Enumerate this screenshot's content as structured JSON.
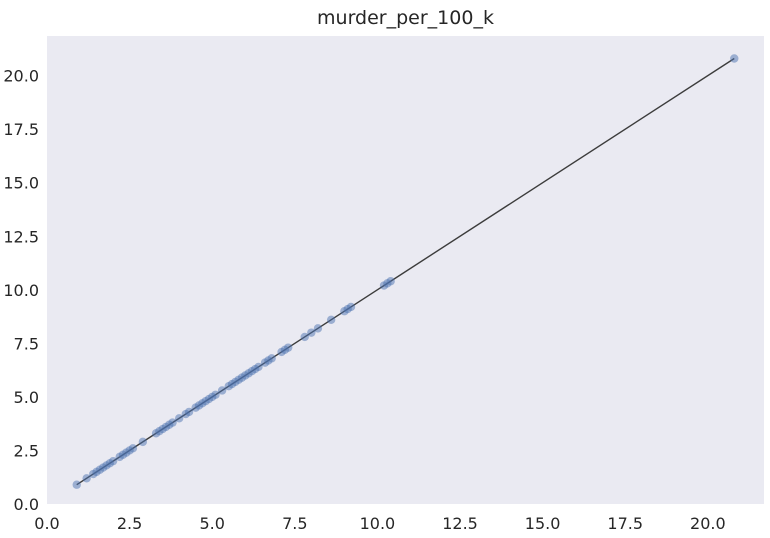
{
  "chart_data": {
    "type": "scatter",
    "title": "murder_per_100_k",
    "xlabel": "",
    "ylabel": "",
    "xlim": [
      0,
      21.7
    ],
    "ylim": [
      0,
      21.85
    ],
    "grid": false,
    "x_ticks": [
      "0.0",
      "2.5",
      "5.0",
      "7.5",
      "10.0",
      "12.5",
      "15.0",
      "17.5",
      "20.0"
    ],
    "y_ticks": [
      "0.0",
      "2.5",
      "5.0",
      "7.5",
      "10.0",
      "12.5",
      "15.0",
      "17.5",
      "20.0"
    ],
    "colors": {
      "background": "#eaeaf2",
      "points": "#4c72b0",
      "line": "#3c3c3c"
    },
    "reference_line": {
      "x": [
        0.9,
        20.8
      ],
      "y": [
        0.9,
        20.8
      ]
    },
    "x": [
      0.9,
      1.2,
      1.4,
      1.5,
      1.6,
      1.7,
      1.8,
      1.9,
      2.0,
      2.2,
      2.3,
      2.4,
      2.5,
      2.6,
      2.9,
      3.3,
      3.4,
      3.5,
      3.6,
      3.7,
      3.8,
      4.0,
      4.2,
      4.3,
      4.5,
      4.6,
      4.7,
      4.8,
      4.9,
      5.0,
      5.1,
      5.3,
      5.5,
      5.6,
      5.7,
      5.8,
      5.9,
      6.0,
      6.1,
      6.2,
      6.3,
      6.4,
      6.6,
      6.7,
      6.8,
      7.1,
      7.2,
      7.3,
      7.8,
      8.0,
      8.2,
      8.6,
      9.0,
      9.1,
      9.2,
      10.2,
      10.3,
      10.4,
      20.8
    ],
    "y": [
      0.9,
      1.2,
      1.4,
      1.5,
      1.6,
      1.7,
      1.8,
      1.9,
      2.0,
      2.2,
      2.3,
      2.4,
      2.5,
      2.6,
      2.9,
      3.3,
      3.4,
      3.5,
      3.6,
      3.7,
      3.8,
      4.0,
      4.2,
      4.3,
      4.5,
      4.6,
      4.7,
      4.8,
      4.9,
      5.0,
      5.1,
      5.3,
      5.5,
      5.6,
      5.7,
      5.8,
      5.9,
      6.0,
      6.1,
      6.2,
      6.3,
      6.4,
      6.6,
      6.7,
      6.8,
      7.1,
      7.2,
      7.3,
      7.8,
      8.0,
      8.2,
      8.6,
      9.0,
      9.1,
      9.2,
      10.2,
      10.3,
      10.4,
      20.8
    ]
  }
}
